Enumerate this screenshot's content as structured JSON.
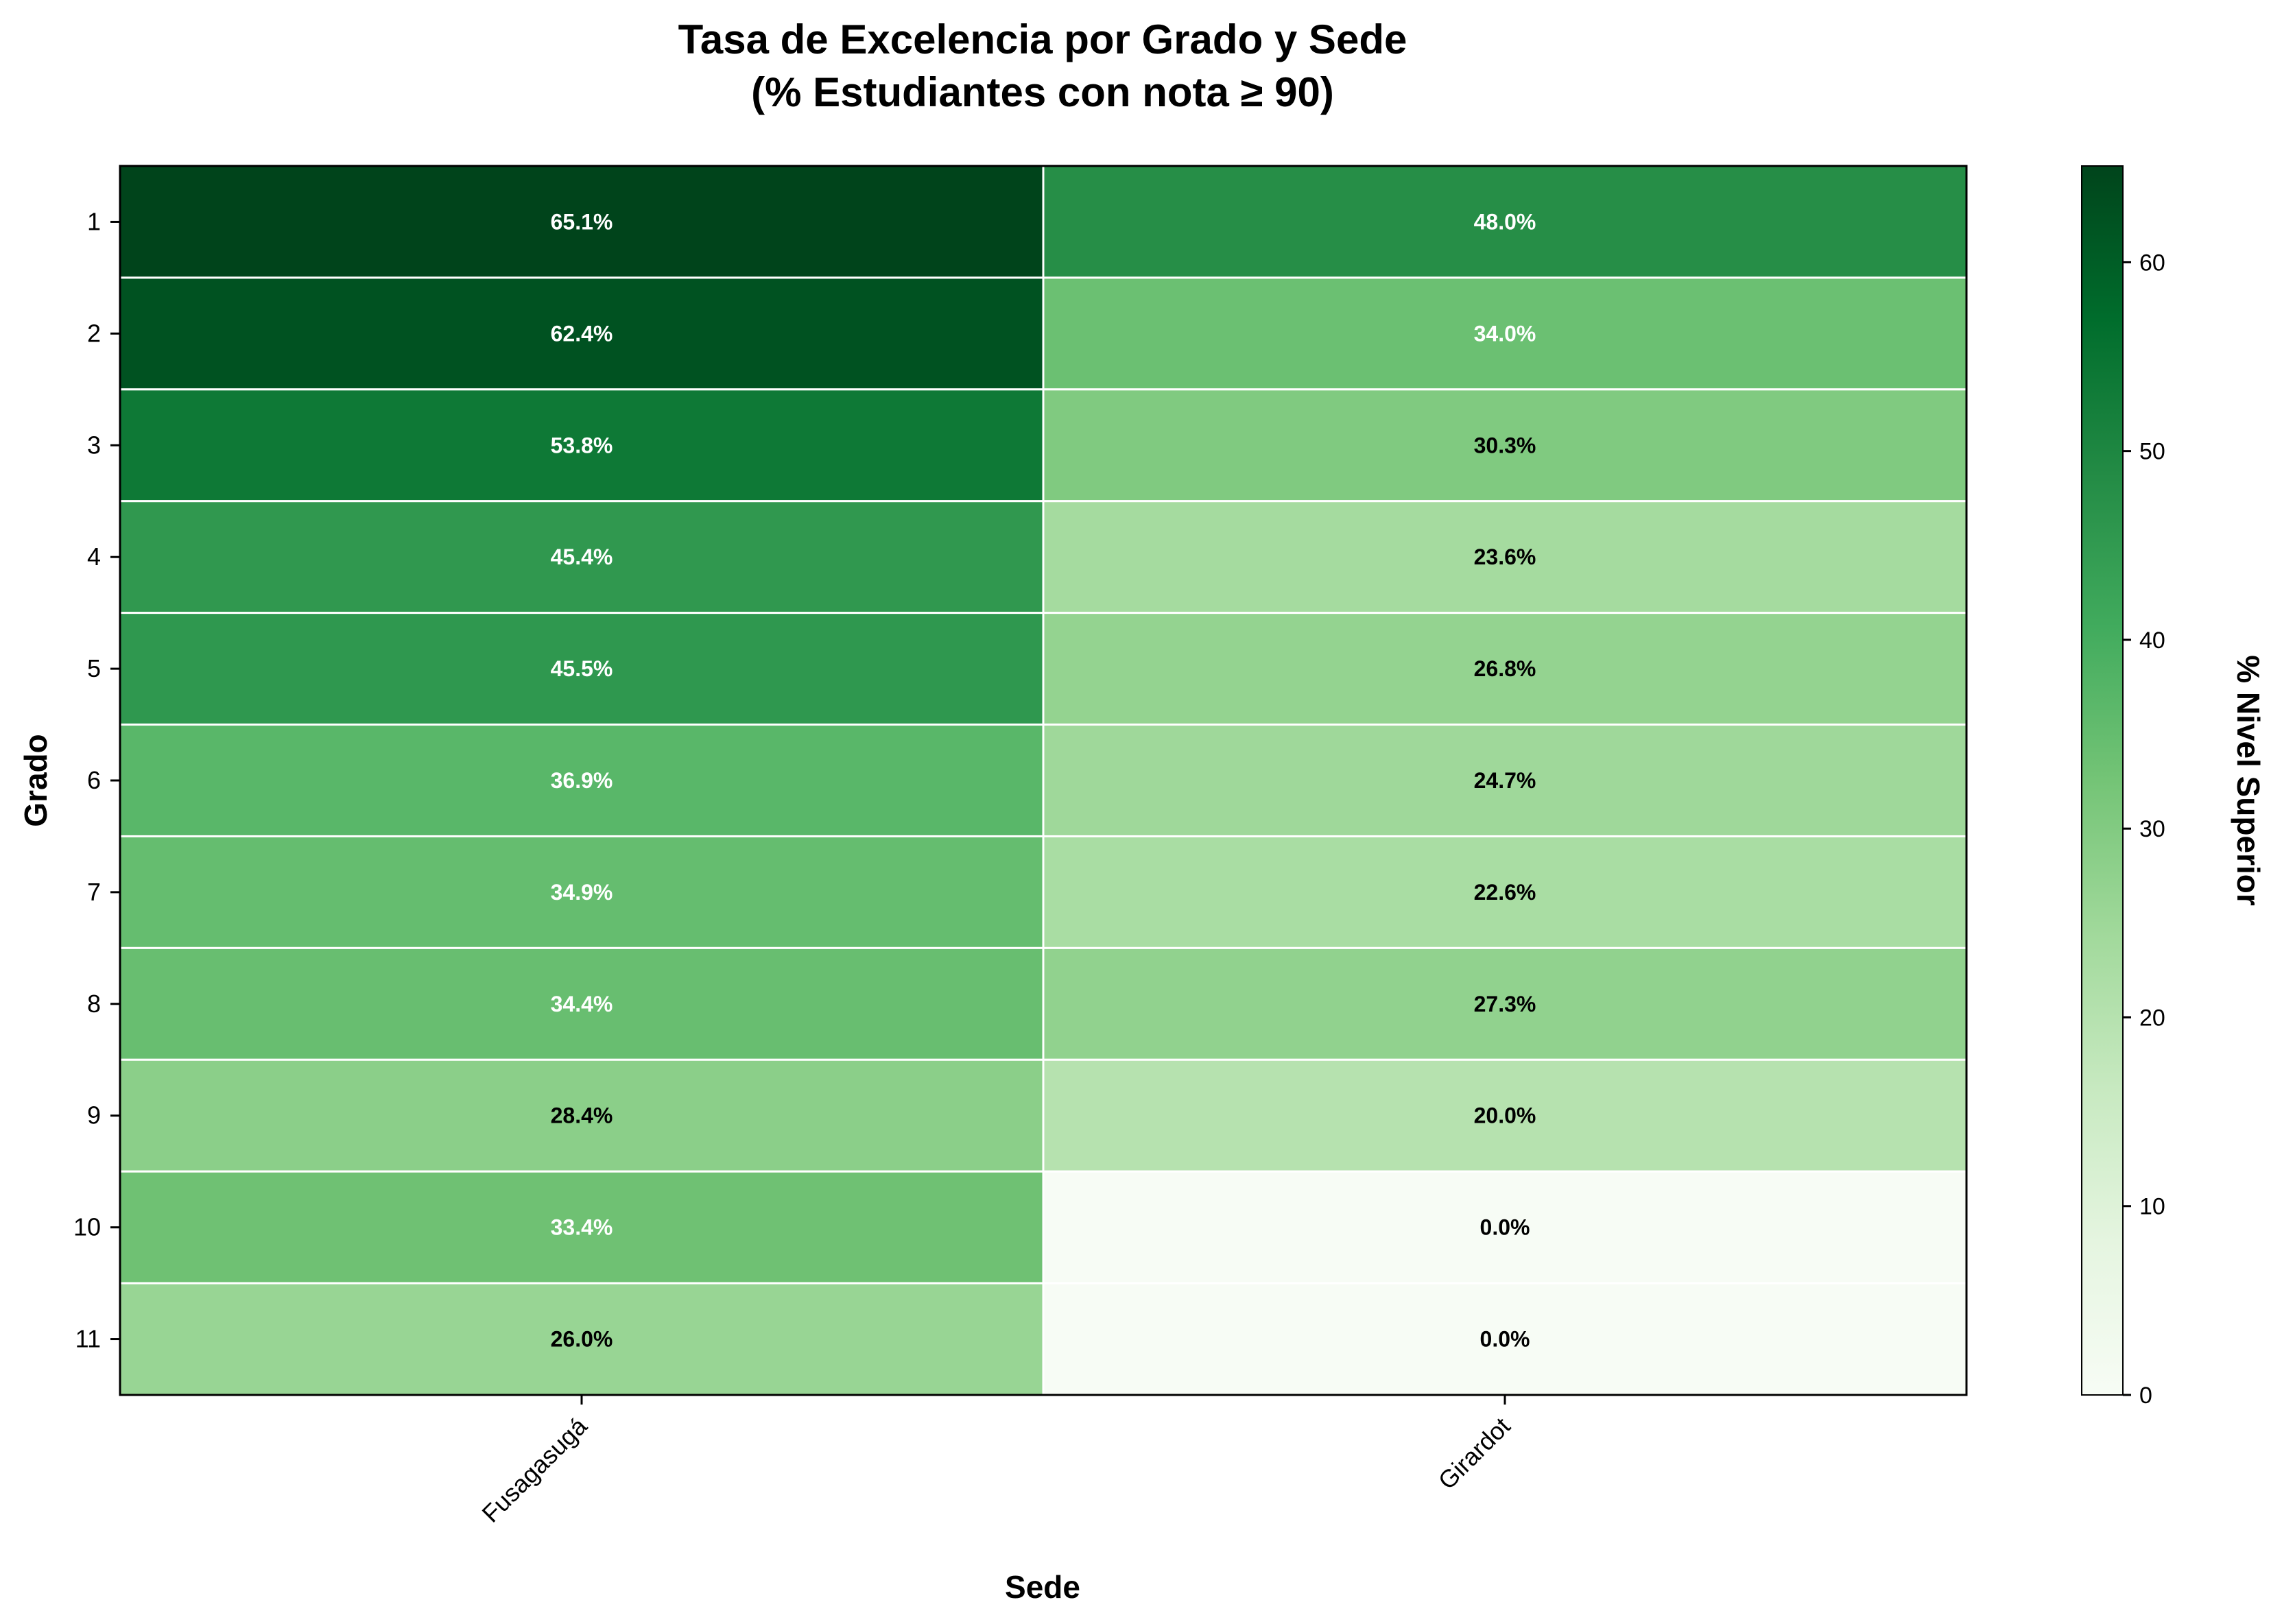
{
  "chart_data": {
    "type": "heatmap",
    "title": "Tasa de Excelencia por Grado y Sede",
    "subtitle": "(% Estudiantes con nota ≥ 90)",
    "xlabel": "Sede",
    "ylabel": "Grado",
    "x_categories": [
      "Fusagasugá",
      "Girardot"
    ],
    "y_categories": [
      "1",
      "2",
      "3",
      "4",
      "5",
      "6",
      "7",
      "8",
      "9",
      "10",
      "11"
    ],
    "values": [
      [
        65.1,
        48.0
      ],
      [
        62.4,
        34.0
      ],
      [
        53.8,
        30.3
      ],
      [
        45.4,
        23.6
      ],
      [
        45.5,
        26.8
      ],
      [
        36.9,
        24.7
      ],
      [
        34.9,
        22.6
      ],
      [
        34.4,
        27.3
      ],
      [
        28.4,
        20.0
      ],
      [
        33.4,
        0.0
      ],
      [
        26.0,
        0.0
      ]
    ],
    "cell_labels": [
      [
        "65.1%",
        "48.0%"
      ],
      [
        "62.4%",
        "34.0%"
      ],
      [
        "53.8%",
        "30.3%"
      ],
      [
        "45.4%",
        "23.6%"
      ],
      [
        "45.5%",
        "26.8%"
      ],
      [
        "36.9%",
        "24.7%"
      ],
      [
        "34.9%",
        "22.6%"
      ],
      [
        "34.4%",
        "27.3%"
      ],
      [
        "28.4%",
        "20.0%"
      ],
      [
        "33.4%",
        "0.0%"
      ],
      [
        "26.0%",
        "0.0%"
      ]
    ],
    "colorbar": {
      "label": "% Nivel Superior",
      "range": [
        0,
        65.1
      ],
      "ticks": [
        0,
        10,
        20,
        30,
        40,
        50,
        60
      ],
      "colormap": "Greens"
    }
  }
}
